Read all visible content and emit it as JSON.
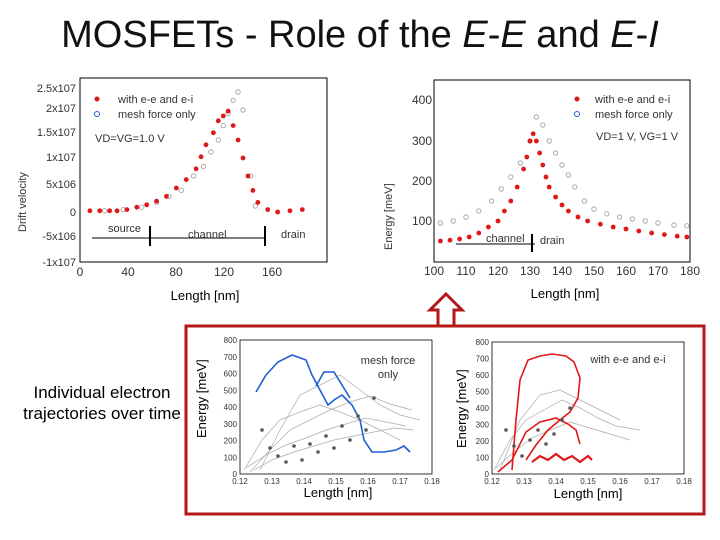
{
  "slide": {
    "title_prefix": "MOSFETs - Role of the ",
    "title_e1": "E",
    "title_dash1": "-",
    "title_e2": "E",
    "title_and": " and ",
    "title_e3": "E",
    "title_dash2": "-",
    "title_i": "I",
    "caption": "Individual electron trajectories over time"
  },
  "colors": {
    "red": "#e01818",
    "blue_line": "#1f5fd6",
    "frame": "#b41818",
    "arrow": "#b41818",
    "gray_open": "#9a9a9a"
  },
  "chart_data": [
    {
      "id": "left-top",
      "type": "scatter",
      "xlabel": "Length  [nm]",
      "ylabel": "Drift velocity",
      "x_ticks": [
        "0",
        "40",
        "80",
        "120",
        "160"
      ],
      "y_ticks": [
        "2.5x10^7",
        "2x10^7",
        "1.5x10^7",
        "1x10^7",
        "5x10^6",
        "0",
        "-5x10^6",
        "-1x10^7"
      ],
      "legend": [
        "with e-e and e-i",
        "mesh force only"
      ],
      "annotation": "VD=VG=1.0 V",
      "region_labels": [
        "source",
        "channel",
        "drain"
      ],
      "series": [
        {
          "name": "with e-e and e-i",
          "points": [
            [
              8,
              0.01
            ],
            [
              16,
              0.01
            ],
            [
              24,
              0.01
            ],
            [
              30,
              0.01
            ],
            [
              38,
              0.02
            ],
            [
              46,
              0.04
            ],
            [
              54,
              0.06
            ],
            [
              62,
              0.09
            ],
            [
              70,
              0.13
            ],
            [
              78,
              0.2
            ],
            [
              86,
              0.27
            ],
            [
              94,
              0.36
            ],
            [
              98,
              0.46
            ],
            [
              102,
              0.56
            ],
            [
              108,
              0.66
            ],
            [
              112,
              0.76
            ],
            [
              116,
              0.8
            ],
            [
              120,
              0.84
            ],
            [
              124,
              0.72
            ],
            [
              128,
              0.6
            ],
            [
              132,
              0.45
            ],
            [
              136,
              0.3
            ],
            [
              140,
              0.18
            ],
            [
              144,
              0.08
            ],
            [
              152,
              0.02
            ],
            [
              160,
              0.0
            ],
            [
              170,
              0.01
            ],
            [
              180,
              0.02
            ]
          ]
        },
        {
          "name": "mesh force only",
          "points": [
            [
              20,
              0.01
            ],
            [
              35,
              0.02
            ],
            [
              50,
              0.04
            ],
            [
              62,
              0.08
            ],
            [
              72,
              0.13
            ],
            [
              82,
              0.18
            ],
            [
              92,
              0.3
            ],
            [
              100,
              0.38
            ],
            [
              106,
              0.5
            ],
            [
              112,
              0.6
            ],
            [
              116,
              0.72
            ],
            [
              120,
              0.82
            ],
            [
              124,
              0.93
            ],
            [
              128,
              1.0
            ],
            [
              132,
              0.85
            ],
            [
              138,
              0.3
            ],
            [
              142,
              0.05
            ]
          ]
        }
      ]
    },
    {
      "id": "right-top",
      "type": "scatter",
      "xlabel": "Length  [nm]",
      "ylabel": "Energy [meV]",
      "x_ticks": [
        "100",
        "110",
        "120",
        "130",
        "140",
        "150",
        "160",
        "170",
        "180"
      ],
      "y_ticks": [
        "400",
        "300",
        "200",
        "100"
      ],
      "legend": [
        "with e-e and e-i",
        "mesh force only"
      ],
      "annotation": "VD=1 V,  VG=1 V",
      "region_labels": [
        "channel",
        "drain"
      ],
      "series": [
        {
          "name": "with e-e and e-i",
          "points": [
            [
              102,
              50
            ],
            [
              105,
              52
            ],
            [
              108,
              55
            ],
            [
              111,
              60
            ],
            [
              114,
              70
            ],
            [
              117,
              85
            ],
            [
              120,
              100
            ],
            [
              122,
              125
            ],
            [
              124,
              150
            ],
            [
              126,
              185
            ],
            [
              128,
              230
            ],
            [
              129,
              260
            ],
            [
              130,
              300
            ],
            [
              131,
              318
            ],
            [
              132,
              300
            ],
            [
              133,
              270
            ],
            [
              134,
              240
            ],
            [
              135,
              210
            ],
            [
              136,
              185
            ],
            [
              138,
              160
            ],
            [
              140,
              140
            ],
            [
              142,
              125
            ],
            [
              145,
              110
            ],
            [
              148,
              100
            ],
            [
              152,
              92
            ],
            [
              156,
              85
            ],
            [
              160,
              80
            ],
            [
              164,
              75
            ],
            [
              168,
              70
            ],
            [
              172,
              66
            ],
            [
              176,
              62
            ],
            [
              179,
              60
            ]
          ]
        },
        {
          "name": "mesh force only",
          "points": [
            [
              102,
              95
            ],
            [
              106,
              100
            ],
            [
              110,
              110
            ],
            [
              114,
              125
            ],
            [
              118,
              150
            ],
            [
              121,
              180
            ],
            [
              124,
              210
            ],
            [
              127,
              245
            ],
            [
              130,
              300
            ],
            [
              132,
              360
            ],
            [
              134,
              340
            ],
            [
              136,
              300
            ],
            [
              138,
              270
            ],
            [
              140,
              240
            ],
            [
              142,
              215
            ],
            [
              144,
              185
            ],
            [
              147,
              150
            ],
            [
              150,
              130
            ],
            [
              154,
              118
            ],
            [
              158,
              110
            ],
            [
              162,
              105
            ],
            [
              166,
              100
            ],
            [
              170,
              95
            ],
            [
              175,
              90
            ],
            [
              179,
              88
            ]
          ]
        }
      ]
    },
    {
      "id": "inset-left",
      "type": "line",
      "xlabel": "Length  [nm]",
      "ylabel": "Energy  [meV]",
      "x_ticks": [
        "0.12",
        "0.13",
        "0.14",
        "0.15",
        "0.16",
        "0.17",
        "0.18"
      ],
      "y_ticks": [
        "800",
        "700",
        "600",
        "500",
        "400",
        "300",
        "200",
        "100",
        "0"
      ],
      "label": "mesh force only"
    },
    {
      "id": "inset-right",
      "type": "line",
      "xlabel": "Length  [nm]",
      "ylabel": "Energy  [meV]",
      "x_ticks": [
        "0.12",
        "0.13",
        "0.14",
        "0.15",
        "0.16",
        "0.17",
        "0.18"
      ],
      "y_ticks": [
        "800",
        "700",
        "600",
        "500",
        "400",
        "300",
        "200",
        "100",
        "0"
      ],
      "label": "with e-e and e-i"
    }
  ]
}
